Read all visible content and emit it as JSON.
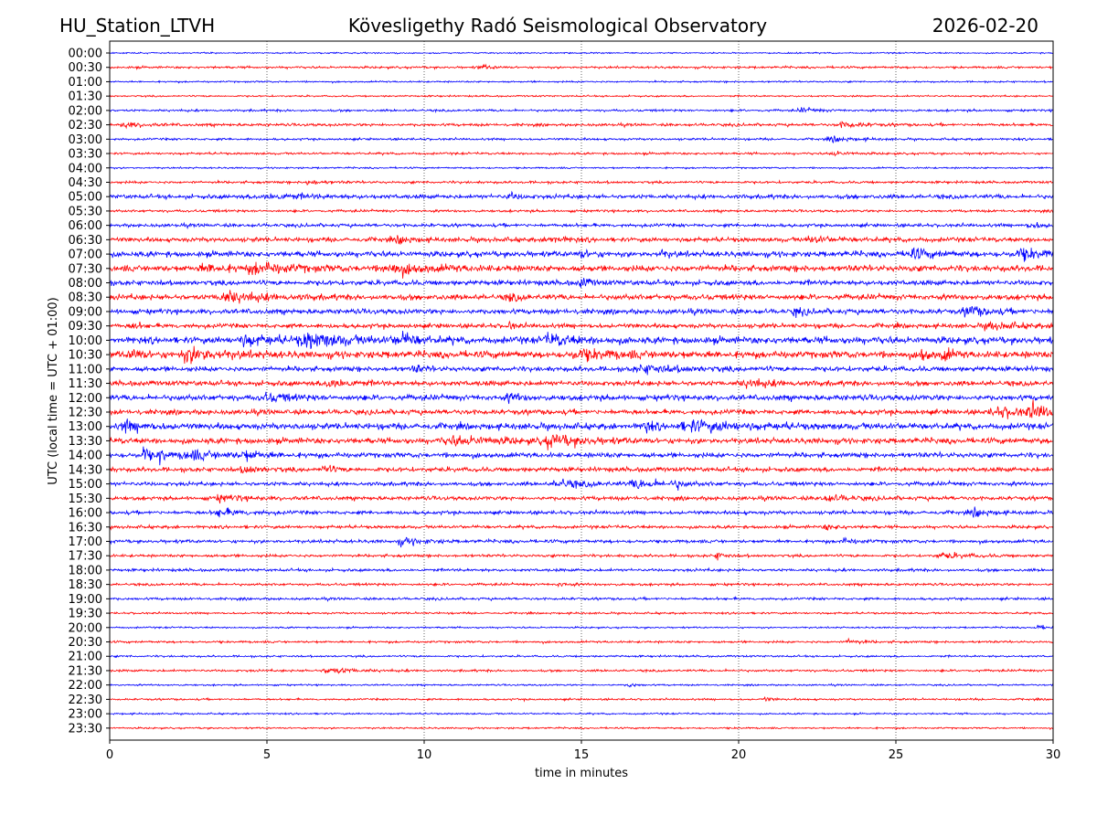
{
  "header": {
    "station": "HU_Station_LTVH",
    "observatory": "Kövesligethy Radó Seismological Observatory",
    "date": "2026-02-20"
  },
  "chart_data": {
    "type": "line",
    "title": "Kövesligethy Radó Seismological Observatory",
    "xlabel": "time in minutes",
    "ylabel": "UTC (local time = UTC + 01:00)",
    "xlim": [
      0,
      30
    ],
    "xticks": [
      0,
      5,
      10,
      15,
      20,
      25,
      30
    ],
    "grid": "vertical dotted at x ticks",
    "colors": [
      "#0000ff",
      "#ff0000"
    ],
    "rows": [
      {
        "label": "00:00",
        "noise": 0.5,
        "events": []
      },
      {
        "label": "00:30",
        "noise": 0.8,
        "events": [
          [
            11.8,
            1.5,
            0.5
          ]
        ]
      },
      {
        "label": "01:00",
        "noise": 0.6,
        "events": []
      },
      {
        "label": "01:30",
        "noise": 0.6,
        "events": []
      },
      {
        "label": "02:00",
        "noise": 0.8,
        "events": [
          [
            22,
            1.5,
            0.6
          ]
        ]
      },
      {
        "label": "02:30",
        "noise": 1.0,
        "events": [
          [
            0.5,
            1.8,
            0.8
          ],
          [
            23.3,
            2,
            0.8
          ]
        ]
      },
      {
        "label": "03:00",
        "noise": 0.8,
        "events": [
          [
            23,
            1.8,
            0.8
          ]
        ]
      },
      {
        "label": "03:30",
        "noise": 0.8,
        "events": [
          [
            23,
            1.5,
            0.6
          ]
        ]
      },
      {
        "label": "04:00",
        "noise": 0.6,
        "events": []
      },
      {
        "label": "04:30",
        "noise": 0.9,
        "events": [
          [
            6.3,
            1.5,
            0.6
          ]
        ]
      },
      {
        "label": "05:00",
        "noise": 1.5,
        "events": [
          [
            5,
            2,
            1.5
          ],
          [
            12.7,
            2.2,
            0.4
          ]
        ]
      },
      {
        "label": "05:30",
        "noise": 0.9,
        "events": []
      },
      {
        "label": "06:00",
        "noise": 1.2,
        "events": [
          [
            29.3,
            2,
            0.6
          ]
        ]
      },
      {
        "label": "06:30",
        "noise": 1.6,
        "events": [
          [
            9.2,
            3,
            0.4
          ],
          [
            14,
            2.5,
            0.6
          ],
          [
            22.3,
            2.2,
            0.8
          ]
        ]
      },
      {
        "label": "07:00",
        "noise": 2.0,
        "events": [
          [
            25.5,
            3.5,
            0.8
          ],
          [
            29,
            3.5,
            1.2
          ],
          [
            15,
            2.5,
            0.4
          ],
          [
            17.5,
            2.5,
            0.4
          ]
        ]
      },
      {
        "label": "07:30",
        "noise": 2.2,
        "events": [
          [
            4.7,
            3.5,
            1.5
          ],
          [
            9,
            3.5,
            1.5
          ],
          [
            3,
            2.5,
            1
          ]
        ]
      },
      {
        "label": "08:00",
        "noise": 1.8,
        "events": [
          [
            15,
            4,
            0.3
          ]
        ]
      },
      {
        "label": "08:30",
        "noise": 2.0,
        "events": [
          [
            3.7,
            4,
            1.2
          ],
          [
            12.7,
            3,
            0.3
          ]
        ]
      },
      {
        "label": "09:00",
        "noise": 1.8,
        "events": [
          [
            27.3,
            4,
            0.8
          ],
          [
            21.8,
            2.5,
            0.4
          ]
        ]
      },
      {
        "label": "09:30",
        "noise": 1.6,
        "events": [
          [
            12.7,
            3,
            0.2
          ],
          [
            0.7,
            2.5,
            0.3
          ],
          [
            28,
            2.5,
            1
          ]
        ]
      },
      {
        "label": "10:00",
        "noise": 2.5,
        "events": [
          [
            6.3,
            5,
            1.5
          ],
          [
            9.2,
            4,
            0.8
          ],
          [
            4.3,
            3.5,
            1
          ],
          [
            14,
            3.5,
            1
          ]
        ]
      },
      {
        "label": "10:30",
        "noise": 2.5,
        "events": [
          [
            2.5,
            5,
            1.2
          ],
          [
            0.7,
            4,
            0.4
          ],
          [
            25.8,
            5,
            0.3
          ],
          [
            26.5,
            5,
            0.3
          ],
          [
            15,
            3,
            1.5
          ]
        ]
      },
      {
        "label": "11:00",
        "noise": 1.8,
        "events": [
          [
            9.7,
            3,
            0.3
          ],
          [
            17,
            2.5,
            1.5
          ]
        ]
      },
      {
        "label": "11:30",
        "noise": 1.8,
        "events": [
          [
            7,
            5,
            0.6
          ],
          [
            20.3,
            2.5,
            1
          ]
        ]
      },
      {
        "label": "12:00",
        "noise": 2.0,
        "events": [
          [
            12.7,
            3,
            0.4
          ],
          [
            5,
            2.5,
            1
          ]
        ]
      },
      {
        "label": "12:30",
        "noise": 1.8,
        "events": [
          [
            29.3,
            4.5,
            0.8
          ],
          [
            28.3,
            3,
            1.5
          ]
        ]
      },
      {
        "label": "13:00",
        "noise": 2.2,
        "events": [
          [
            0.5,
            3.5,
            0.8
          ],
          [
            17,
            5,
            0.3
          ],
          [
            18.5,
            3.5,
            2
          ]
        ]
      },
      {
        "label": "13:30",
        "noise": 2.0,
        "events": [
          [
            14,
            4,
            1.2
          ],
          [
            11,
            2.5,
            2
          ]
        ]
      },
      {
        "label": "14:00",
        "noise": 1.8,
        "events": [
          [
            1.05,
            9,
            0.2
          ],
          [
            1.6,
            8,
            0.2
          ],
          [
            2.5,
            3,
            1.5
          ],
          [
            4.3,
            3,
            0.6
          ]
        ]
      },
      {
        "label": "14:30",
        "noise": 1.6,
        "events": [
          [
            6.8,
            3,
            0.4
          ],
          [
            4.3,
            2.5,
            0.6
          ]
        ]
      },
      {
        "label": "15:00",
        "noise": 1.4,
        "events": [
          [
            14.3,
            3,
            1
          ],
          [
            16.8,
            3,
            1.2
          ],
          [
            18,
            3,
            0.2
          ]
        ]
      },
      {
        "label": "15:30",
        "noise": 1.4,
        "events": [
          [
            22.8,
            2.5,
            0.8
          ],
          [
            3.5,
            2,
            1
          ]
        ]
      },
      {
        "label": "16:00",
        "noise": 1.3,
        "events": [
          [
            27.5,
            3,
            0.5
          ],
          [
            3.5,
            2.5,
            1
          ]
        ]
      },
      {
        "label": "16:30",
        "noise": 1.1,
        "events": [
          [
            22.8,
            2,
            0.5
          ]
        ]
      },
      {
        "label": "17:00",
        "noise": 1.2,
        "events": [
          [
            9.3,
            2.5,
            0.8
          ],
          [
            23.3,
            2,
            0.5
          ]
        ]
      },
      {
        "label": "17:30",
        "noise": 1.0,
        "events": [
          [
            19.3,
            2.5,
            0.3
          ],
          [
            26.5,
            2,
            1
          ]
        ]
      },
      {
        "label": "18:00",
        "noise": 1.0,
        "events": []
      },
      {
        "label": "18:30",
        "noise": 0.9,
        "events": [
          [
            14.3,
            1.8,
            0.3
          ]
        ]
      },
      {
        "label": "19:00",
        "noise": 0.9,
        "events": []
      },
      {
        "label": "19:30",
        "noise": 0.7,
        "events": []
      },
      {
        "label": "20:00",
        "noise": 0.6,
        "events": [
          [
            29.5,
            1.5,
            0.5
          ]
        ]
      },
      {
        "label": "20:30",
        "noise": 0.8,
        "events": [
          [
            23.5,
            1.5,
            0.6
          ]
        ]
      },
      {
        "label": "21:00",
        "noise": 0.7,
        "events": []
      },
      {
        "label": "21:30",
        "noise": 0.8,
        "events": [
          [
            7,
            2.2,
            1
          ]
        ]
      },
      {
        "label": "22:00",
        "noise": 0.6,
        "events": [
          [
            16.5,
            1.5,
            0.3
          ]
        ]
      },
      {
        "label": "22:30",
        "noise": 0.7,
        "events": [
          [
            20.8,
            1.8,
            0.3
          ]
        ]
      },
      {
        "label": "23:00",
        "noise": 0.6,
        "events": []
      },
      {
        "label": "23:30",
        "noise": 0.6,
        "events": []
      }
    ]
  }
}
